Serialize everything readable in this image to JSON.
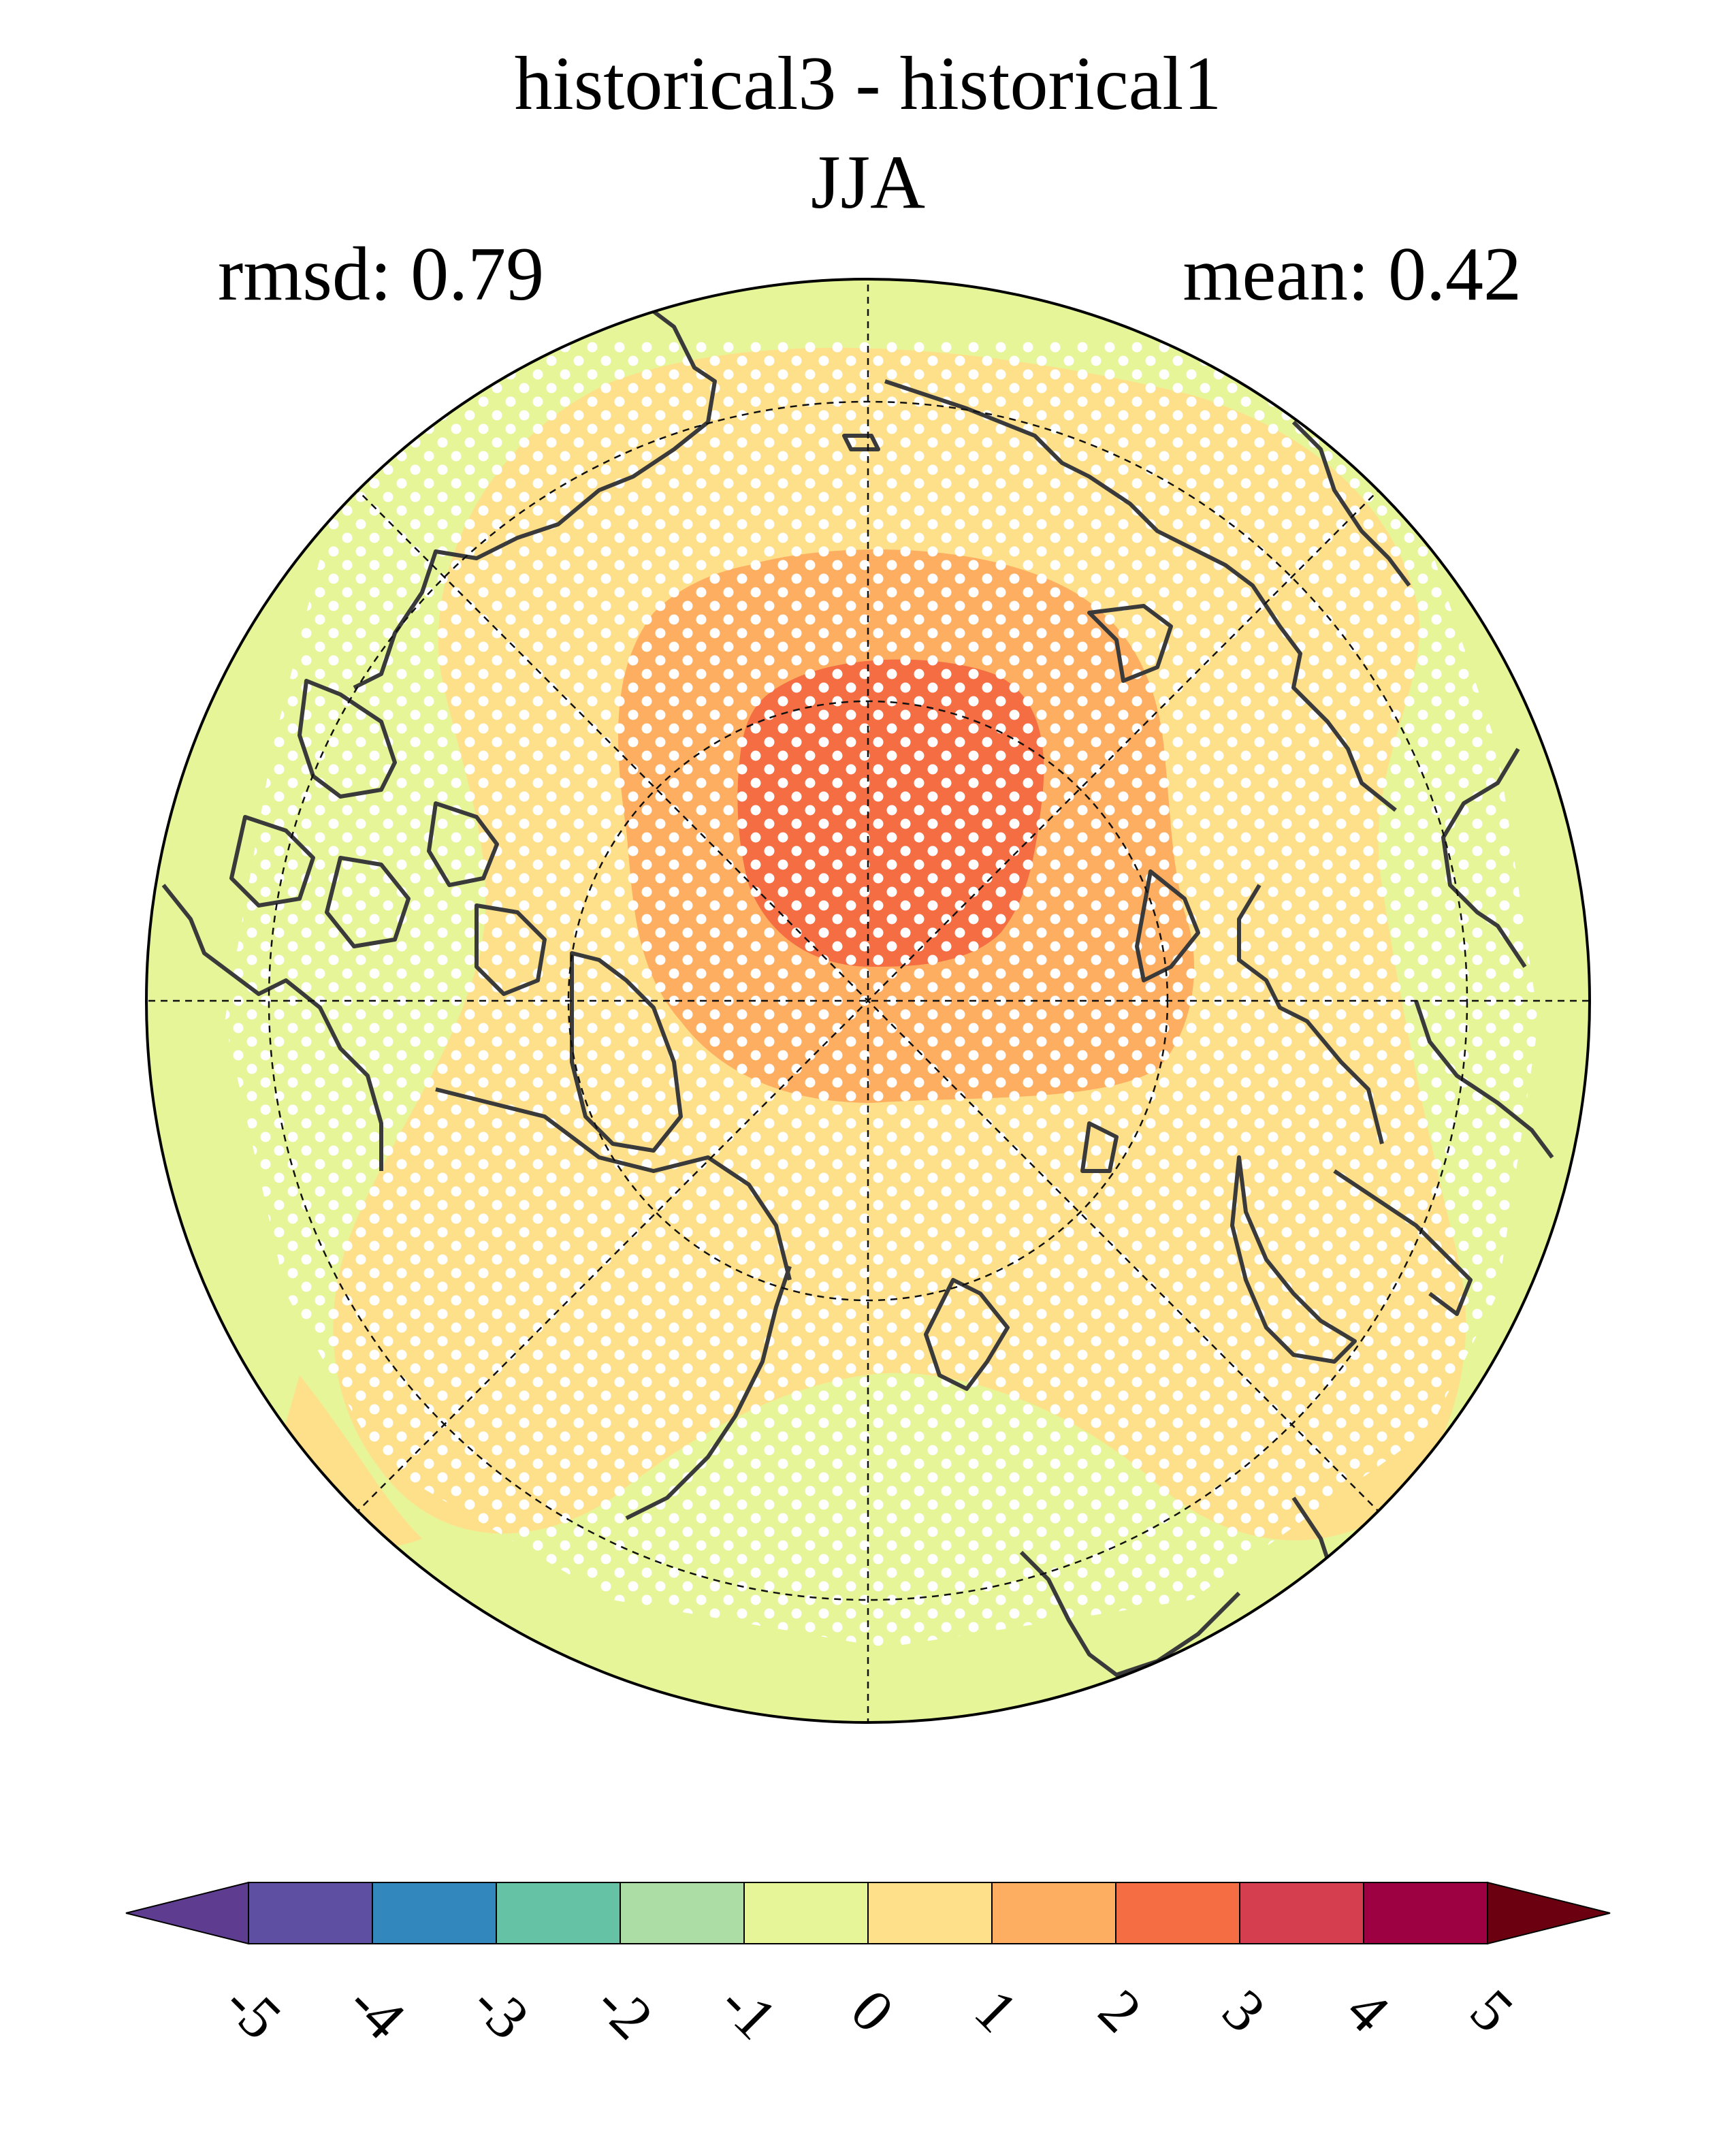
{
  "title": {
    "line1": "historical3 - historical1",
    "line2": "JJA",
    "rmsd": "rmsd: 0.79",
    "mean": "mean: 0.42"
  },
  "map": {
    "projection": "north-polar-stereographic",
    "ocean_fill": "#E6F598",
    "stippling": "white dots marking significance",
    "coastlines_color": "#3a3a3a"
  },
  "colorbar": {
    "orientation": "horizontal",
    "extend": "both",
    "levels": [
      "-5",
      "-4",
      "-3",
      "-2",
      "-1",
      "0",
      "1",
      "2",
      "3",
      "4",
      "5"
    ],
    "colors": [
      "#5E4FA2",
      "#3288BD",
      "#66C2A5",
      "#ABDDA4",
      "#E6F598",
      "#FEE08B",
      "#FDAE61",
      "#F46D43",
      "#D53E4F",
      "#9E0142"
    ],
    "under_color": "#5E3C8F",
    "over_color": "#6A0010"
  },
  "chart_data": {
    "type": "heatmap",
    "title": "historical3 - historical1",
    "subtitle": "JJA",
    "annotations": [
      "rmsd: 0.79",
      "mean: 0.42"
    ],
    "colorbar_ticks": [
      -5,
      -4,
      -3,
      -2,
      -1,
      0,
      1,
      2,
      3,
      4,
      5
    ],
    "regions": [
      {
        "value_range": [
          3,
          4
        ],
        "area": "north pole core"
      },
      {
        "value_range": [
          2,
          3
        ],
        "area": "ring around core over central Arctic"
      },
      {
        "value_range": [
          1,
          2
        ],
        "area": "broad surrounding Arctic Ocean"
      },
      {
        "value_range": [
          0,
          1
        ],
        "area": "outer continents and margins"
      }
    ]
  }
}
